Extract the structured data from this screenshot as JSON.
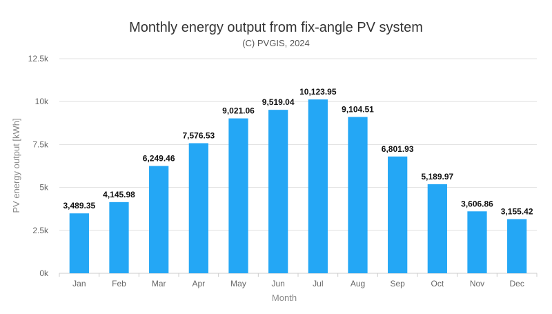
{
  "chart_data": {
    "type": "bar",
    "title": "Monthly energy output from fix-angle PV system",
    "subtitle": "(C) PVGIS, 2024",
    "xlabel": "Month",
    "ylabel": "PV energy output [kWh]",
    "categories": [
      "Jan",
      "Feb",
      "Mar",
      "Apr",
      "May",
      "Jun",
      "Jul",
      "Aug",
      "Sep",
      "Oct",
      "Nov",
      "Dec"
    ],
    "values": [
      3489.35,
      4145.98,
      6249.46,
      7576.53,
      9021.06,
      9519.04,
      10123.95,
      9104.51,
      6801.93,
      5189.97,
      3606.86,
      3155.42
    ],
    "value_labels": [
      "3,489.35",
      "4,145.98",
      "6,249.46",
      "7,576.53",
      "9,021.06",
      "9,519.04",
      "10,123.95",
      "9,104.51",
      "6,801.93",
      "5,189.97",
      "3,606.86",
      "3,155.42"
    ],
    "yticks": [
      0,
      2500,
      5000,
      7500,
      10000,
      12500
    ],
    "ytick_labels": [
      "0k",
      "2.5k",
      "5k",
      "7.5k",
      "10k",
      "12.5k"
    ],
    "ylim": [
      0,
      12500
    ],
    "grid": true,
    "bar_color": "#24a7f5"
  }
}
